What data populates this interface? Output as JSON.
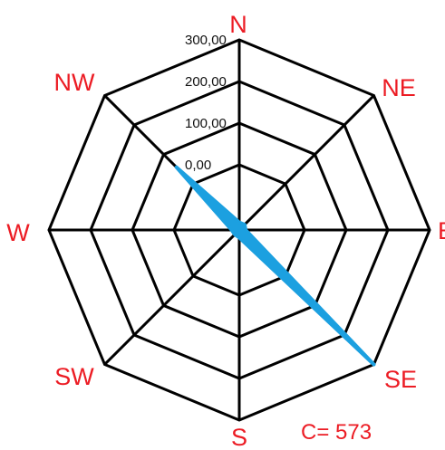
{
  "chart_data": {
    "type": "radar",
    "directions": [
      "N",
      "NE",
      "E",
      "SE",
      "S",
      "SW",
      "W",
      "NW"
    ],
    "rings": [
      0,
      100,
      200,
      300
    ],
    "tick_labels": [
      "0,00",
      "100,00",
      "200,00",
      "300,00"
    ],
    "rmax": 300,
    "values": [
      12,
      12,
      10,
      300,
      12,
      10,
      12,
      140
    ],
    "series_color": "#1ca0e0",
    "grid_color": "#000000",
    "label_color": "#ec1c24",
    "annotation": "C= 573"
  }
}
